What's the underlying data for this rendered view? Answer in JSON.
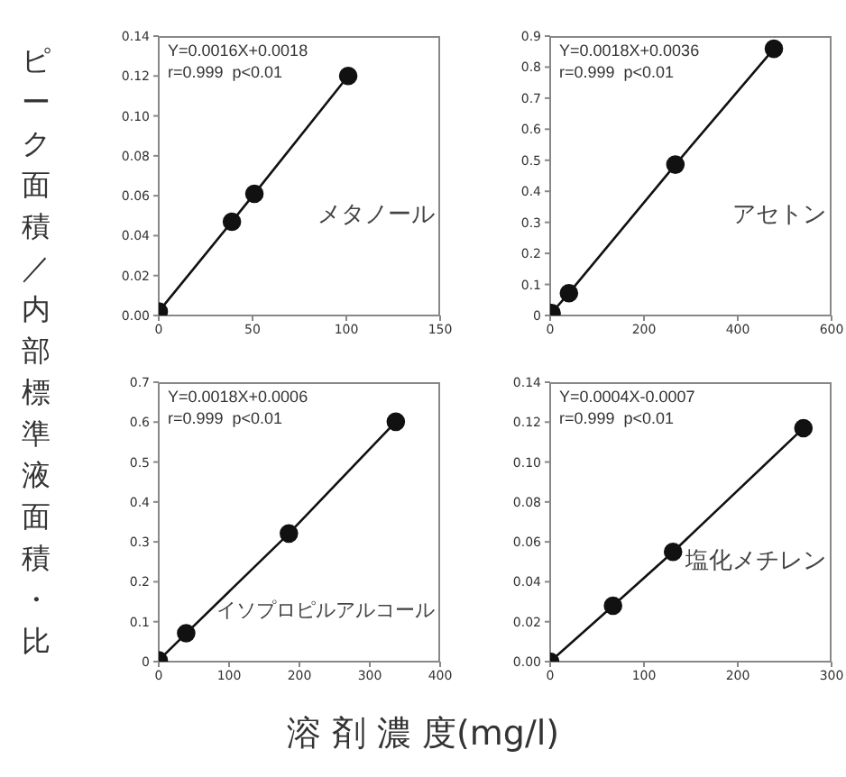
{
  "chart_data": [
    {
      "type": "line",
      "ylabel": "ピーク面積／内部標準液面積・比",
      "x": [
        0,
        39,
        51,
        101
      ],
      "series": [
        {
          "color": "#111111",
          "values": [
            0.002,
            0.047,
            0.061,
            0.12
          ]
        }
      ],
      "xlim": [
        0,
        150
      ],
      "xticks": [
        0,
        50,
        100,
        150
      ],
      "ylim": [
        0,
        0.14
      ],
      "yticks": [
        {
          "value": 0,
          "label": "0.00"
        },
        {
          "value": 0.02,
          "label": "0.02"
        },
        {
          "value": 0.04,
          "label": "0.04"
        },
        {
          "value": 0.06,
          "label": "0.06"
        },
        {
          "value": 0.08,
          "label": "0.08"
        },
        {
          "value": 0.1,
          "label": "0.10"
        },
        {
          "value": 0.12,
          "label": "0.12"
        },
        {
          "value": 0.14,
          "label": "0.14"
        }
      ],
      "marker": "circle",
      "line_style": "solid",
      "grid": false,
      "legend": false,
      "annotations": [
        "Y=0.0016X+0.0018",
        "r=0.999  p<0.01",
        "メタノール"
      ]
    },
    {
      "type": "line",
      "x": [
        3,
        40,
        267,
        477
      ],
      "series": [
        {
          "color": "#111111",
          "values": [
            0.008,
            0.072,
            0.486,
            0.859
          ]
        }
      ],
      "xlim": [
        0,
        600
      ],
      "xticks": [
        0,
        200,
        400,
        600
      ],
      "ylim": [
        0,
        0.9
      ],
      "yticks": [
        0,
        0.1,
        0.2,
        0.3,
        0.4,
        0.5,
        0.6,
        0.7,
        0.8,
        0.9
      ],
      "marker": "circle",
      "line_style": "solid",
      "grid": false,
      "legend": false,
      "annotations": [
        "Y=0.0018X+0.0036",
        "r=0.999  p<0.01",
        "アセトン"
      ]
    },
    {
      "type": "line",
      "xlabel": "溶 剤 濃 度(mg/l)",
      "x": [
        0,
        39,
        185,
        337
      ],
      "series": [
        {
          "color": "#111111",
          "values": [
            0.003,
            0.071,
            0.321,
            0.601
          ]
        }
      ],
      "xlim": [
        0,
        400
      ],
      "xticks": [
        0,
        100,
        200,
        300,
        400
      ],
      "ylim": [
        0,
        0.7
      ],
      "yticks": [
        0,
        0.1,
        0.2,
        0.3,
        0.4,
        0.5,
        0.6,
        0.7
      ],
      "marker": "circle",
      "line_style": "solid",
      "grid": false,
      "legend": false,
      "annotations": [
        "Y=0.0018X+0.0006",
        "r=0.999  p<0.01",
        "イソプロピルアルコール"
      ]
    },
    {
      "type": "line",
      "x": [
        0,
        67,
        131,
        270
      ],
      "series": [
        {
          "color": "#111111",
          "values": [
            0,
            0.028,
            0.055,
            0.117
          ]
        }
      ],
      "xlim": [
        0,
        300
      ],
      "xticks": [
        0,
        100,
        200,
        300
      ],
      "ylim": [
        0,
        0.14
      ],
      "yticks": [
        {
          "value": 0,
          "label": "0.00"
        },
        {
          "value": 0.02,
          "label": "0.02"
        },
        {
          "value": 0.04,
          "label": "0.04"
        },
        {
          "value": 0.06,
          "label": "0.06"
        },
        {
          "value": 0.08,
          "label": "0.08"
        },
        {
          "value": 0.1,
          "label": "0.10"
        },
        {
          "value": 0.12,
          "label": "0.12"
        },
        {
          "value": 0.14,
          "label": "0.14"
        }
      ],
      "marker": "circle",
      "line_style": "solid",
      "grid": false,
      "legend": false,
      "annotations": [
        "Y=0.0004X-0.0007",
        "r=0.999  p<0.01",
        "塩化メチレン"
      ]
    }
  ]
}
